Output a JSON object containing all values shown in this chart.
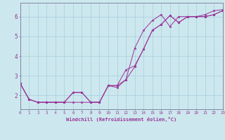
{
  "xlabel": "Windchill (Refroidissement éolien,°C)",
  "background_color": "#cce8ee",
  "grid_color": "#a8ccdd",
  "line_color": "#993399",
  "spine_color": "#777799",
  "xlim": [
    0,
    23
  ],
  "ylim": [
    1.3,
    6.7
  ],
  "yticks": [
    2,
    3,
    4,
    5,
    6
  ],
  "xticks": [
    0,
    1,
    2,
    3,
    4,
    5,
    6,
    7,
    8,
    9,
    10,
    11,
    12,
    13,
    14,
    15,
    16,
    17,
    18,
    19,
    20,
    21,
    22,
    23
  ],
  "series": [
    [
      2.6,
      1.8,
      1.65,
      1.65,
      1.65,
      1.65,
      1.65,
      1.65,
      1.65,
      1.65,
      2.5,
      2.5,
      3.3,
      3.5,
      4.35,
      5.3,
      5.6,
      6.05,
      5.7,
      6.0,
      6.0,
      6.0,
      6.1,
      6.3
    ],
    [
      2.6,
      1.8,
      1.65,
      1.65,
      1.65,
      1.65,
      2.15,
      2.15,
      1.65,
      1.65,
      2.5,
      2.5,
      2.8,
      3.45,
      4.35,
      5.3,
      5.6,
      6.05,
      5.7,
      6.0,
      6.0,
      6.0,
      6.1,
      6.3
    ],
    [
      2.6,
      1.8,
      1.65,
      1.65,
      1.65,
      1.65,
      2.15,
      2.15,
      1.65,
      1.65,
      2.5,
      2.4,
      2.8,
      4.4,
      5.3,
      5.8,
      6.1,
      5.5,
      6.0,
      6.0,
      6.0,
      6.1,
      6.3,
      6.35
    ]
  ]
}
